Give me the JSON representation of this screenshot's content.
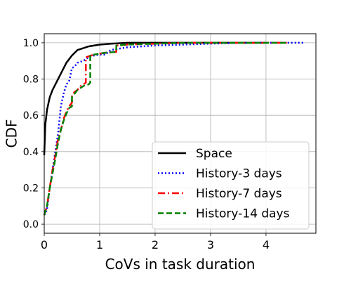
{
  "chart_data": {
    "type": "line",
    "title": "",
    "xlabel": "CoVs in task duration",
    "ylabel": "CDF",
    "xlim": [
      0,
      4.9
    ],
    "ylim": [
      -0.05,
      1.05
    ],
    "xticks": [
      0,
      1,
      2,
      3,
      4
    ],
    "yticks": [
      0.0,
      0.2,
      0.4,
      0.6,
      0.8,
      1.0
    ],
    "xtick_labels": [
      "0",
      "1",
      "2",
      "3",
      "4"
    ],
    "ytick_labels": [
      "0.0",
      "0.2",
      "0.4",
      "0.6",
      "0.8",
      "1.0"
    ],
    "grid": true,
    "legend_position": "lower-right",
    "series": [
      {
        "name": "Space",
        "color": "#000000",
        "style": "solid",
        "x": [
          0.0,
          0.02,
          0.05,
          0.1,
          0.15,
          0.2,
          0.3,
          0.4,
          0.5,
          0.6,
          0.7,
          0.8,
          1.0,
          1.2,
          1.5,
          2.0,
          2.5,
          3.0,
          3.5,
          4.0
        ],
        "y": [
          0.38,
          0.55,
          0.63,
          0.7,
          0.74,
          0.77,
          0.83,
          0.89,
          0.93,
          0.96,
          0.97,
          0.98,
          0.99,
          0.995,
          1.0,
          1.0,
          1.0,
          1.0,
          1.0,
          1.0
        ]
      },
      {
        "name": "History-3 days",
        "color": "#0000ff",
        "style": "dotted",
        "x": [
          0.0,
          0.05,
          0.1,
          0.15,
          0.2,
          0.25,
          0.3,
          0.35,
          0.4,
          0.45,
          0.5,
          0.55,
          0.6,
          0.7,
          0.8,
          0.9,
          1.0,
          1.1,
          1.2,
          1.5,
          2.0,
          2.5,
          3.0,
          3.5,
          4.0,
          4.5,
          4.7
        ],
        "y": [
          0.05,
          0.08,
          0.2,
          0.3,
          0.4,
          0.5,
          0.65,
          0.72,
          0.77,
          0.79,
          0.86,
          0.87,
          0.89,
          0.9,
          0.92,
          0.93,
          0.935,
          0.935,
          0.96,
          0.975,
          0.985,
          0.99,
          0.995,
          1.0,
          1.0,
          1.0,
          1.0
        ]
      },
      {
        "name": "History-7 days",
        "color": "#ff0000",
        "style": "dashdot",
        "x": [
          0.0,
          0.05,
          0.1,
          0.15,
          0.2,
          0.25,
          0.3,
          0.35,
          0.4,
          0.45,
          0.5,
          0.5,
          0.55,
          0.6,
          0.65,
          0.7,
          0.75,
          0.75,
          0.8,
          0.85,
          0.9,
          1.0,
          1.1,
          1.3,
          1.3,
          1.5,
          2.0,
          2.5,
          3.0,
          3.5,
          4.0,
          4.4
        ],
        "y": [
          0.05,
          0.1,
          0.2,
          0.3,
          0.38,
          0.47,
          0.52,
          0.58,
          0.62,
          0.65,
          0.67,
          0.71,
          0.73,
          0.74,
          0.76,
          0.77,
          0.78,
          0.92,
          0.925,
          0.93,
          0.935,
          0.94,
          0.945,
          0.95,
          0.985,
          0.99,
          0.995,
          1.0,
          1.0,
          1.0,
          1.0,
          1.0
        ]
      },
      {
        "name": "History-14 days",
        "color": "#008000",
        "style": "dashed",
        "x": [
          0.0,
          0.05,
          0.1,
          0.15,
          0.2,
          0.25,
          0.3,
          0.35,
          0.4,
          0.45,
          0.5,
          0.5,
          0.55,
          0.6,
          0.65,
          0.7,
          0.75,
          0.8,
          0.83,
          0.83,
          0.9,
          1.0,
          1.1,
          1.3,
          1.3,
          1.5,
          2.0,
          2.5,
          3.0,
          3.5,
          4.0,
          4.4
        ],
        "y": [
          0.05,
          0.1,
          0.2,
          0.28,
          0.36,
          0.45,
          0.52,
          0.57,
          0.61,
          0.64,
          0.65,
          0.7,
          0.72,
          0.74,
          0.75,
          0.76,
          0.77,
          0.77,
          0.78,
          0.93,
          0.935,
          0.94,
          0.945,
          0.95,
          0.985,
          0.99,
          0.995,
          1.0,
          1.0,
          1.0,
          1.0,
          1.0
        ]
      }
    ]
  }
}
